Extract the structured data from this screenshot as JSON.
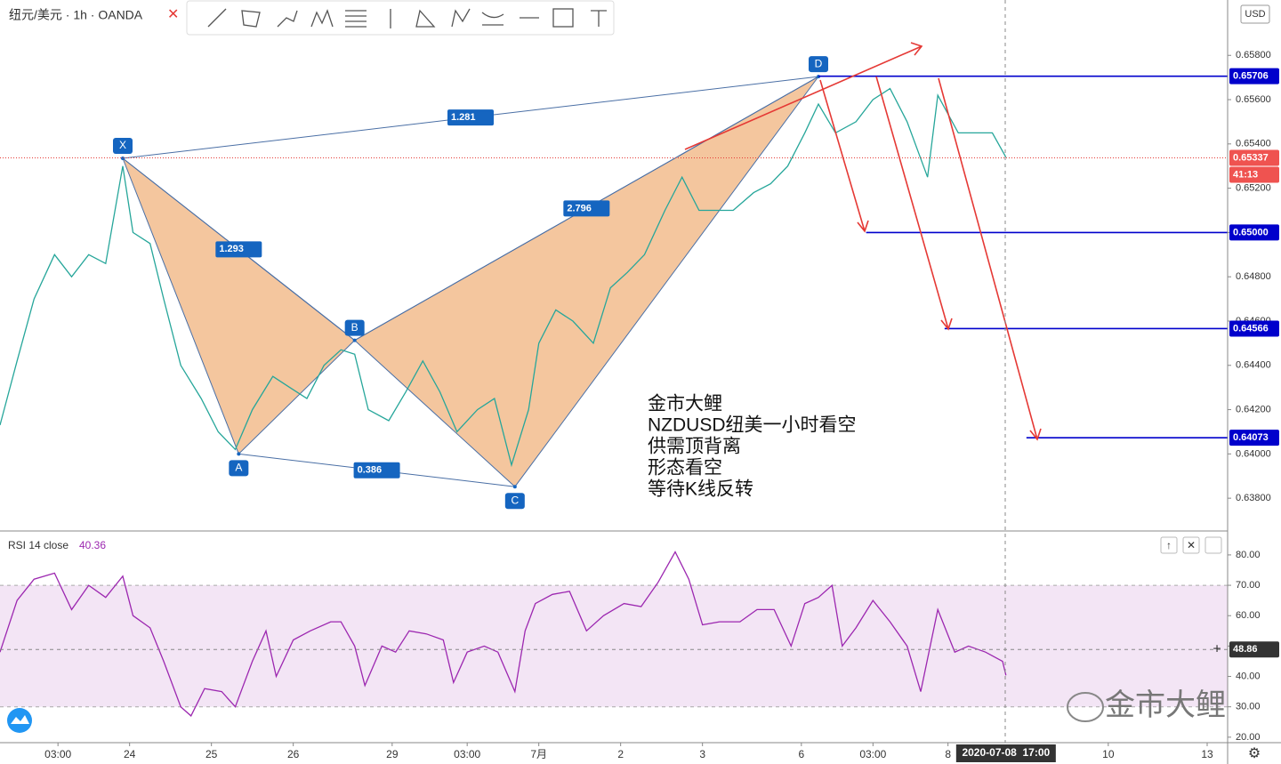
{
  "chart_data": [
    {
      "type": "line",
      "title": "纽元/美元 · 1h · OANDA",
      "currency": "USD",
      "x": [
        0,
        5,
        10,
        16,
        21,
        26,
        31,
        36,
        39,
        44,
        48,
        53,
        59,
        64,
        69,
        74,
        80,
        85,
        90,
        95,
        100,
        104,
        108,
        114,
        119,
        124,
        129,
        134,
        140,
        145,
        150,
        155,
        158,
        163,
        168,
        174,
        179,
        184,
        189,
        195,
        200,
        205,
        210,
        215,
        221,
        226,
        231,
        236,
        240,
        245,
        251,
        256,
        261,
        266,
        272,
        275,
        281,
        286,
        291,
        295
      ],
      "series": [
        {
          "color": "#26a69a",
          "values": [
            0.6413,
            0.6442,
            0.647,
            0.649,
            0.648,
            0.649,
            0.6486,
            0.653,
            0.65,
            0.6495,
            0.647,
            0.644,
            0.6425,
            0.641,
            0.6402,
            0.642,
            0.6435,
            0.643,
            0.6425,
            0.644,
            0.6447,
            0.6445,
            0.642,
            0.6415,
            0.6428,
            0.6442,
            0.6428,
            0.641,
            0.642,
            0.6425,
            0.6395,
            0.642,
            0.645,
            0.6465,
            0.646,
            0.645,
            0.6475,
            0.6482,
            0.649,
            0.651,
            0.6525,
            0.651,
            0.651,
            0.651,
            0.6518,
            0.6522,
            0.653,
            0.6545,
            0.6558,
            0.6545,
            0.655,
            0.656,
            0.6565,
            0.655,
            0.6525,
            0.6562,
            0.6545,
            0.6545,
            0.6545,
            0.6534
          ]
        }
      ],
      "xlim": [
        0,
        360
      ],
      "ylim": [
        0.6366,
        0.6605
      ],
      "xticks": [
        {
          "value": 17,
          "label": "03:00"
        },
        {
          "value": 38,
          "label": "24"
        },
        {
          "value": 62,
          "label": "25"
        },
        {
          "value": 86,
          "label": "26"
        },
        {
          "value": 115,
          "label": "29"
        },
        {
          "value": 137,
          "label": "03:00"
        },
        {
          "value": 158,
          "label": "7月"
        },
        {
          "value": 182,
          "label": "2"
        },
        {
          "value": 206,
          "label": "3"
        },
        {
          "value": 235,
          "label": "6"
        },
        {
          "value": 256,
          "label": "03:00"
        },
        {
          "value": 278,
          "label": "8"
        },
        {
          "value": 325,
          "label": "10"
        },
        {
          "value": 354,
          "label": "13"
        }
      ],
      "yticks": [
        {
          "value": 0.638,
          "label": "0.63800"
        },
        {
          "value": 0.64,
          "label": "0.64000"
        },
        {
          "value": 0.642,
          "label": "0.64200"
        },
        {
          "value": 0.644,
          "label": "0.64400"
        },
        {
          "value": 0.646,
          "label": "0.64600"
        },
        {
          "value": 0.648,
          "label": "0.64800"
        },
        {
          "value": 0.65,
          "label": "0.65000"
        },
        {
          "value": 0.652,
          "label": "0.65200"
        },
        {
          "value": 0.654,
          "label": "0.65400"
        },
        {
          "value": 0.656,
          "label": "0.65600"
        },
        {
          "value": 0.658,
          "label": "0.65800"
        }
      ],
      "pattern": {
        "color": "#f0b37e",
        "points": [
          {
            "label": "X",
            "x": 36,
            "y": 0.65335
          },
          {
            "label": "A",
            "x": 70,
            "y": 0.64
          },
          {
            "label": "B",
            "x": 104,
            "y": 0.64513
          },
          {
            "label": "C",
            "x": 151,
            "y": 0.63852
          },
          {
            "label": "D",
            "x": 240,
            "y": 0.65704
          }
        ],
        "ratios": [
          1.281,
          0.386,
          1.293,
          2.796
        ]
      },
      "levels": [
        {
          "x": 240,
          "value": 0.65706,
          "label": "0.65706"
        },
        {
          "x": 254,
          "value": 0.65,
          "label": "0.65000"
        },
        {
          "x": 277,
          "value": 0.64566,
          "label": "0.64566"
        },
        {
          "x": 301,
          "value": 0.64073,
          "label": "0.64073"
        }
      ],
      "current_price": {
        "value": 0.65337,
        "label": "0.65337"
      },
      "countdown": "41:13",
      "annotation": [
        "金市大鲤",
        "NZDUSD纽美一小时看空",
        "供需顶背离",
        "形态看空",
        "等待K线反转"
      ]
    },
    {
      "type": "line",
      "title": "RSI 14 close",
      "last_value": 40.36,
      "x": [
        0,
        5,
        10,
        16,
        21,
        26,
        31,
        36,
        39,
        44,
        48,
        53,
        56,
        60,
        65,
        69,
        74,
        78,
        81,
        86,
        91,
        97,
        100,
        104,
        107,
        112,
        116,
        120,
        125,
        130,
        133,
        137,
        142,
        146,
        151,
        154,
        157,
        162,
        167,
        172,
        177,
        183,
        188,
        193,
        198,
        202,
        206,
        211,
        217,
        222,
        227,
        232,
        236,
        240,
        244,
        247,
        251,
        256,
        261,
        266,
        270,
        275,
        280,
        284,
        289,
        294,
        295
      ],
      "series": [
        {
          "color": "#9c27b0",
          "values": [
            48,
            65,
            72,
            74,
            62,
            70,
            66,
            73,
            60,
            56,
            45,
            30,
            27,
            36,
            35,
            30,
            45,
            55,
            40,
            52,
            55,
            58,
            58,
            50,
            37,
            50,
            48,
            55,
            54,
            52,
            38,
            48,
            50,
            48,
            35,
            55,
            64,
            67,
            68,
            55,
            60,
            64,
            63,
            71,
            81,
            72,
            57,
            58,
            58,
            62,
            62,
            50,
            64,
            66,
            70,
            50,
            56,
            65,
            58,
            50,
            35,
            62,
            48,
            50,
            48,
            45,
            40.36
          ]
        }
      ],
      "xlim": [
        0,
        360
      ],
      "ylim": [
        18.2,
        87
      ],
      "band": [
        30,
        70
      ],
      "yticks": [
        {
          "value": 20,
          "label": "20.00"
        },
        {
          "value": 30,
          "label": "30.00"
        },
        {
          "value": 40,
          "label": "40.00"
        },
        {
          "value": 50,
          "label": "50.00"
        },
        {
          "value": 60,
          "label": "60.00"
        },
        {
          "value": 70,
          "label": "70.00"
        },
        {
          "value": 80,
          "label": "80.00"
        }
      ],
      "crosshair": {
        "x": {
          "value": 295,
          "label": "2020-07-08  17:00"
        },
        "y": {
          "value": 48.86,
          "label": "48.86"
        }
      },
      "watermark": "金市大鲤"
    }
  ]
}
